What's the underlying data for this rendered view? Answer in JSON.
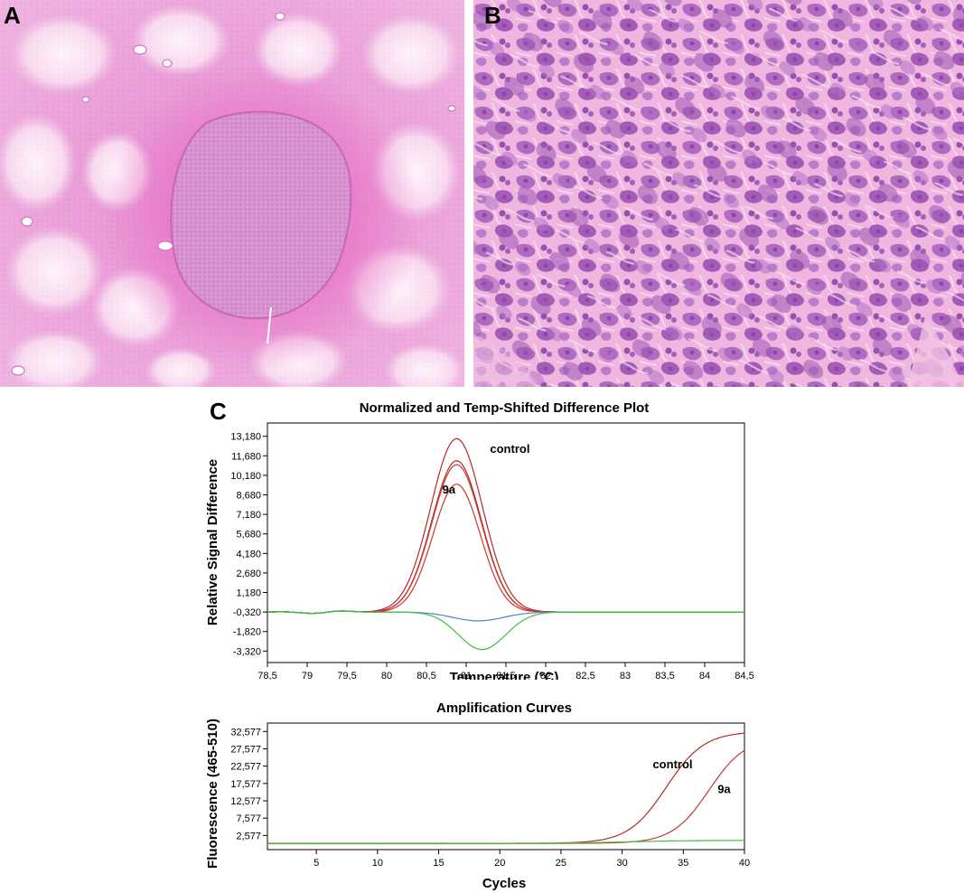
{
  "panel_labels": {
    "a": "A",
    "b": "B",
    "c": "C"
  },
  "colors": {
    "control": "#b52a2a",
    "sample_9a": "#c8382f",
    "blue_trace": "#4a86c8",
    "green_trace": "#3fbf3f",
    "histology_pink": "#e98fd0",
    "nuclei_purple": "#9a4fb0"
  },
  "chart_data": [
    {
      "type": "line",
      "title": "Normalized and Temp-Shifted Difference Plot",
      "xlabel": "Temperature (°C)",
      "ylabel": "Relative Signal Difference",
      "xlim": [
        78.5,
        84.5
      ],
      "ylim": [
        -4.2,
        14.2
      ],
      "x_ticks": [
        "78,5",
        "79",
        "79,5",
        "80",
        "80,5",
        "81",
        "81,5",
        "82",
        "82,5",
        "83",
        "83,5",
        "84",
        "84,5"
      ],
      "y_ticks": [
        "13,180",
        "11,680",
        "10,180",
        "8,680",
        "7,180",
        "5,680",
        "4,180",
        "2,680",
        "1,180",
        "-0,320",
        "-1,820",
        "-3,320"
      ],
      "grid": false,
      "annotations": [
        {
          "text": "control",
          "x": 81.3,
          "y": 11.9
        },
        {
          "text": "9a",
          "x": 80.7,
          "y": 8.8
        }
      ],
      "series": [
        {
          "color": "control",
          "peak_x": 80.88,
          "peak_y": 13.0,
          "width": 0.46,
          "baseline": -0.32
        },
        {
          "color": "control",
          "peak_x": 80.88,
          "peak_y": 11.3,
          "width": 0.44,
          "baseline": -0.32
        },
        {
          "color": "sample_9a",
          "peak_x": 80.88,
          "peak_y": 11.0,
          "width": 0.44,
          "baseline": -0.32
        },
        {
          "color": "sample_9a",
          "peak_x": 80.88,
          "peak_y": 9.5,
          "width": 0.42,
          "baseline": -0.32
        },
        {
          "color": "blue_trace",
          "peak_x": 81.15,
          "peak_y": -1.0,
          "width": 0.45,
          "baseline": -0.32
        },
        {
          "color": "green_trace",
          "peak_x": 81.2,
          "peak_y": -3.2,
          "width": 0.42,
          "baseline": -0.32
        }
      ]
    },
    {
      "type": "line",
      "title": "Amplification Curves",
      "xlabel": "Cycles",
      "ylabel": "Fluorescence (465-510)",
      "xlim": [
        1,
        40
      ],
      "ylim": [
        -1.5,
        35
      ],
      "x_ticks": [
        "5",
        "10",
        "15",
        "20",
        "25",
        "30",
        "35",
        "40"
      ],
      "y_ticks": [
        "32,577",
        "27,577",
        "22,577",
        "17,577",
        "12,577",
        "7,577",
        "2,577"
      ],
      "grid": false,
      "annotations": [
        {
          "text": "control",
          "x": 32.5,
          "y": 22.0
        },
        {
          "text": "9a",
          "x": 37.8,
          "y": 14.8
        }
      ],
      "series": [
        {
          "color": "control",
          "plateau": 32.6,
          "midpoint": 33.6,
          "slope": 1.55,
          "baseline": 0.3
        },
        {
          "color": "sample_9a",
          "plateau": 31.0,
          "midpoint": 37.1,
          "slope": 1.5,
          "baseline": 0.3
        },
        {
          "color": "green_trace",
          "plateau": 1.2,
          "midpoint": 30,
          "slope": 3,
          "baseline": 0.2
        }
      ]
    }
  ]
}
